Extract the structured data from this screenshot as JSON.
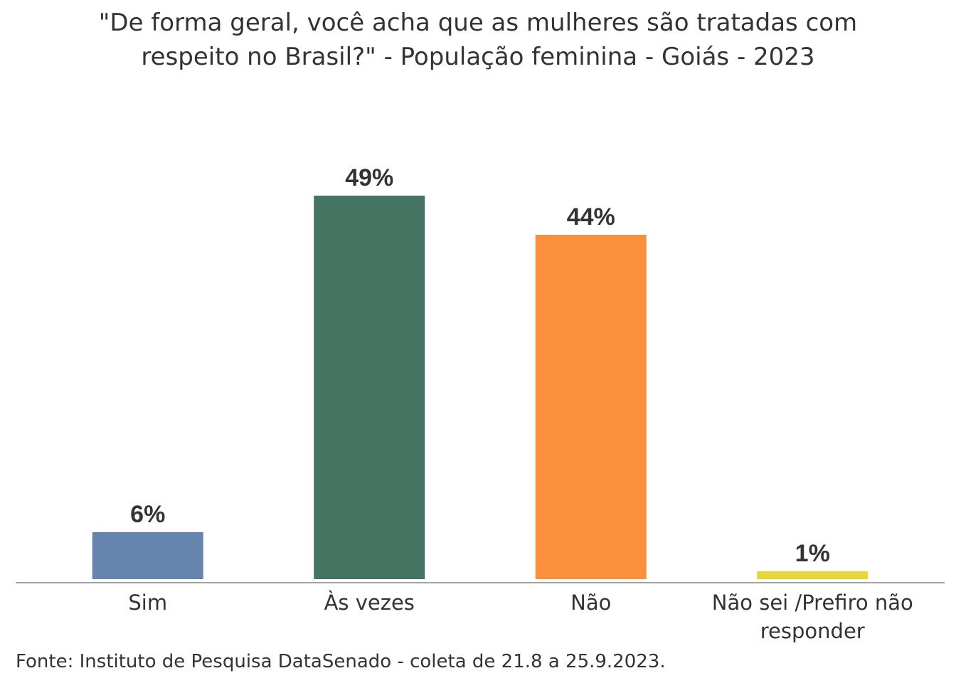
{
  "chart_data": {
    "type": "bar",
    "title_lines": [
      "\"De forma geral, você acha que as mulheres são tratadas com",
      "respeito no Brasil?\" - População feminina - Goiás - 2023"
    ],
    "categories": [
      "Sim",
      "Às vezes",
      "Não",
      "Não sei /Prefiro não responder"
    ],
    "category_label_lines": [
      [
        "Sim"
      ],
      [
        "Às vezes"
      ],
      [
        "Não"
      ],
      [
        "Não sei /Prefiro não",
        "responder"
      ]
    ],
    "values": [
      6,
      49,
      44,
      1
    ],
    "value_labels": [
      "6%",
      "49%",
      "44%",
      "1%"
    ],
    "colors": [
      "#6685ae",
      "#447563",
      "#fa8f3c",
      "#e5d73a"
    ],
    "xlabel": "",
    "ylabel": "",
    "ylim": [
      0,
      49
    ],
    "grid": false,
    "legend": "none"
  },
  "source": "Fonte: Instituto de Pesquisa DataSenado - coleta de 21.8 a 25.9.2023."
}
